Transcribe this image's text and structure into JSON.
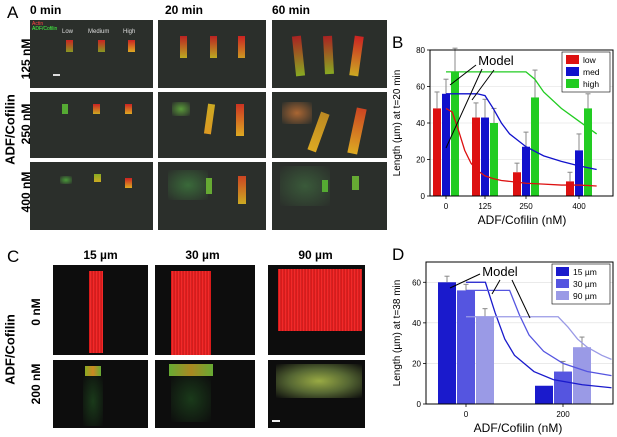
{
  "panels": {
    "A": {
      "letter": "A",
      "col_headers": [
        "0 min",
        "20 min",
        "60 min"
      ],
      "row_headers": [
        "125 nM",
        "250 nM",
        "400 nM"
      ],
      "side_label": "ADF/Cofilin",
      "inset_labels": {
        "actin": "Actin",
        "adf": "ADF/Cofilin",
        "low": "Low",
        "medium": "Medium",
        "high": "High"
      }
    },
    "C": {
      "letter": "C",
      "col_headers": [
        "15 µm",
        "30 µm",
        "90 µm"
      ],
      "row_headers": [
        "0 nM",
        "200 nM"
      ],
      "side_label": "ADF/Cofilin"
    },
    "B": {
      "letter": "B",
      "model_label": "Model"
    },
    "D": {
      "letter": "D",
      "model_label": "Model"
    }
  },
  "colors": {
    "low": "#dd1111",
    "med": "#1111cc",
    "high": "#22cc22",
    "d15": "#1a1acc",
    "d30": "#5555e0",
    "d90": "#9a9ae6"
  },
  "chart_data": [
    {
      "type": "bar",
      "panel": "B",
      "categories": [
        "0",
        "125",
        "250",
        "400"
      ],
      "xlabel": "ADF/Cofilin (nM)",
      "ylabel": "Length (µm) at t=20 min",
      "ylim": [
        0,
        80
      ],
      "yticks": [
        0,
        20,
        40,
        60,
        80
      ],
      "legend": "top-right",
      "series": [
        {
          "name": "low",
          "values": [
            48,
            43,
            13,
            8
          ],
          "errors": [
            9,
            8,
            5,
            5
          ]
        },
        {
          "name": "med",
          "values": [
            56,
            43,
            27,
            25
          ],
          "errors": [
            8,
            10,
            8,
            9
          ]
        },
        {
          "name": "high",
          "values": [
            68,
            40,
            54,
            48
          ],
          "errors": [
            13,
            8,
            15,
            8
          ]
        }
      ],
      "model_curves": [
        {
          "series": "low",
          "x": [
            0,
            20,
            40,
            60,
            80,
            100,
            125,
            150,
            175,
            200,
            250,
            300,
            350,
            400,
            450
          ],
          "y": [
            48,
            46,
            36,
            25,
            18,
            14,
            11,
            9.5,
            8.5,
            8,
            7,
            6.5,
            6,
            6,
            5.5
          ]
        },
        {
          "series": "med",
          "x": [
            0,
            100,
            125,
            150,
            175,
            200,
            250,
            300,
            350,
            400,
            450
          ],
          "y": [
            56,
            56,
            55,
            48,
            40,
            34,
            27,
            22,
            19,
            16.5,
            14.5
          ]
        },
        {
          "series": "high",
          "x": [
            0,
            250,
            275,
            300,
            350,
            400,
            450
          ],
          "y": [
            68,
            68,
            64,
            57,
            48,
            41,
            34
          ]
        }
      ]
    },
    {
      "type": "bar",
      "panel": "D",
      "categories": [
        "0",
        "200"
      ],
      "xlabel": "ADF/Cofilin (nM)",
      "ylabel": "Length (µm) at t=38 min",
      "ylim": [
        0,
        70
      ],
      "yticks": [
        0,
        20,
        40,
        60
      ],
      "legend": "top-right",
      "series": [
        {
          "name": "15 µm",
          "values": [
            60,
            9
          ],
          "errors": [
            3,
            0
          ]
        },
        {
          "name": "30 µm",
          "values": [
            56,
            16
          ],
          "errors": [
            3,
            5
          ]
        },
        {
          "name": "90 µm",
          "values": [
            43,
            28
          ],
          "errors": [
            4,
            5
          ]
        }
      ],
      "model_curves": [
        {
          "series": "15 µm",
          "x": [
            0,
            40,
            60,
            80,
            100,
            140,
            180,
            240,
            300
          ],
          "y": [
            60,
            60,
            45,
            32,
            24,
            16,
            12,
            9.5,
            8
          ]
        },
        {
          "series": "30 µm",
          "x": [
            0,
            90,
            110,
            130,
            160,
            200,
            250,
            300
          ],
          "y": [
            56,
            56,
            44,
            34,
            26,
            20,
            16,
            14
          ]
        },
        {
          "series": "90 µm",
          "x": [
            0,
            190,
            210,
            230,
            250,
            280,
            300
          ],
          "y": [
            43,
            43,
            38,
            32,
            28,
            24,
            22
          ]
        }
      ]
    }
  ]
}
